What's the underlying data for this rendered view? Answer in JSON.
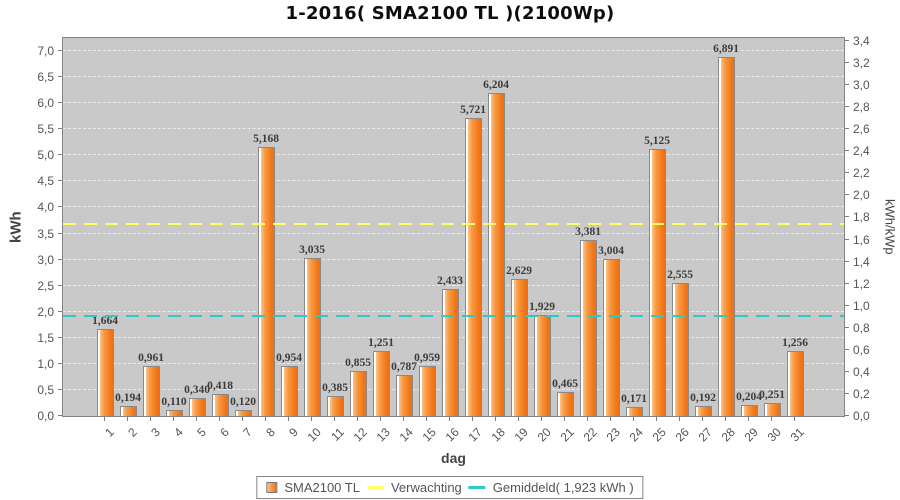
{
  "chart_data": {
    "type": "bar",
    "title": "1-2016( SMA2100 TL )(2100Wp)",
    "xlabel": "dag",
    "ylabel_left": "kWh",
    "ylabel_right": "kWh/kWp",
    "categories": [
      "1",
      "2",
      "3",
      "4",
      "5",
      "6",
      "7",
      "8",
      "9",
      "10",
      "11",
      "12",
      "13",
      "14",
      "15",
      "16",
      "17",
      "18",
      "19",
      "20",
      "21",
      "22",
      "23",
      "24",
      "25",
      "26",
      "27",
      "28",
      "29",
      "30",
      "31"
    ],
    "values": [
      1.664,
      0.194,
      0.961,
      0.11,
      0.34,
      0.418,
      0.12,
      5.168,
      0.954,
      3.035,
      0.385,
      0.855,
      1.251,
      0.787,
      0.959,
      2.433,
      5.721,
      6.204,
      2.629,
      1.929,
      0.465,
      3.381,
      3.004,
      0.171,
      5.125,
      2.555,
      0.192,
      6.891,
      0.204,
      0.251,
      1.256
    ],
    "value_labels": [
      "1,664",
      "0,194",
      "0,961",
      "0,110",
      "0,340",
      "0,418",
      "0,120",
      "5,168",
      "0,954",
      "3,035",
      "0,385",
      "0,855",
      "1,251",
      "0,787",
      "0,959",
      "2,433",
      "5,721",
      "6,204",
      "2,629",
      "1,929",
      "0,465",
      "3,381",
      "3,004",
      "0,171",
      "5,125",
      "2,555",
      "0,192",
      "6,891",
      "0,204",
      "0,251",
      "1,256"
    ],
    "ylim_left": [
      0.0,
      7.0
    ],
    "ytick_labels_left": [
      "0,0",
      "0,5",
      "1,0",
      "1,5",
      "2,0",
      "2,5",
      "3,0",
      "3,5",
      "4,0",
      "4,5",
      "5,0",
      "5,5",
      "6,0",
      "6,5",
      "7,0"
    ],
    "ylim_right": [
      0.0,
      3.4
    ],
    "ytick_labels_right": [
      "0,0",
      "0,2",
      "0,4",
      "0,6",
      "0,8",
      "1,0",
      "1,2",
      "1,4",
      "1,6",
      "1,8",
      "2,0",
      "2,2",
      "2,4",
      "2,6",
      "2,8",
      "3,0",
      "3,2",
      "3,4"
    ],
    "grid": "horizontal white dashed every 0,5 kWh",
    "legend_position": "bottom-center",
    "reference_lines": [
      {
        "name": "Verwachting",
        "value_kwh": 3.675,
        "color": "#ffff66"
      },
      {
        "name": "Gemiddeld",
        "value_kwh": 1.923,
        "color": "#2dc9c9"
      }
    ],
    "colors": {
      "bar_main": "#f2791c",
      "bar_light": "#fdc383",
      "plot_background": "#c9c9c9",
      "gridline": "#ebebeb",
      "expectation_line": "#ffff66",
      "average_line": "#2dc9c9"
    }
  },
  "legend": {
    "items": [
      {
        "label": "SMA2100 TL",
        "swatch": "orange-square"
      },
      {
        "label": "Verwachting",
        "swatch": "yellow-dash"
      },
      {
        "label": "Gemiddeld( 1,923 kWh )",
        "swatch": "cyan-dash"
      }
    ]
  }
}
